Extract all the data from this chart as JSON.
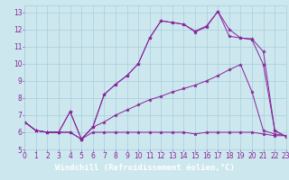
{
  "xlabel": "Windchill (Refroidissement éolien,°C)",
  "bg_color": "#cce8ee",
  "plot_bg_color": "#cce8ee",
  "line_color": "#882299",
  "grid_color": "#aaccdd",
  "xlabel_bg_color": "#442266",
  "xlabel_text_color": "#ffffff",
  "tick_color": "#882299",
  "xlim": [
    0,
    23
  ],
  "ylim": [
    5,
    13.4
  ],
  "xticks": [
    0,
    1,
    2,
    3,
    4,
    5,
    6,
    7,
    8,
    9,
    10,
    11,
    12,
    13,
    14,
    15,
    16,
    17,
    18,
    19,
    20,
    21,
    22,
    23
  ],
  "yticks": [
    5,
    6,
    7,
    8,
    9,
    10,
    11,
    12,
    13
  ],
  "line1_x": [
    0,
    1,
    2,
    3,
    4,
    5,
    6,
    7,
    8,
    9,
    10,
    11,
    12,
    13,
    14,
    15,
    16,
    17,
    18,
    19,
    20,
    21,
    22,
    23
  ],
  "line1_y": [
    6.6,
    6.1,
    6.0,
    6.0,
    6.0,
    5.6,
    6.0,
    6.0,
    6.0,
    6.0,
    6.0,
    6.0,
    6.0,
    6.0,
    6.0,
    5.9,
    6.0,
    6.0,
    6.0,
    6.0,
    6.0,
    5.9,
    5.8,
    5.8
  ],
  "line2_x": [
    0,
    1,
    2,
    3,
    4,
    5,
    6,
    7,
    8,
    9,
    10,
    11,
    12,
    13,
    14,
    15,
    16,
    17,
    18,
    19,
    20,
    21,
    22,
    23
  ],
  "line2_y": [
    6.6,
    6.1,
    6.0,
    6.0,
    6.0,
    5.6,
    6.3,
    6.6,
    7.0,
    7.3,
    7.6,
    7.9,
    8.1,
    8.35,
    8.55,
    8.75,
    9.0,
    9.3,
    9.65,
    9.95,
    8.35,
    6.1,
    5.9,
    5.8
  ],
  "line3_x": [
    0,
    1,
    2,
    3,
    4,
    5,
    6,
    7,
    8,
    9,
    10,
    11,
    12,
    13,
    14,
    15,
    16,
    17,
    18,
    19,
    20,
    21,
    22,
    23
  ],
  "line3_y": [
    6.6,
    6.1,
    6.0,
    6.0,
    7.2,
    5.6,
    6.3,
    8.2,
    8.8,
    9.3,
    10.0,
    11.5,
    12.5,
    12.4,
    12.3,
    11.85,
    12.15,
    13.05,
    12.0,
    11.5,
    11.45,
    10.7,
    6.1,
    5.75
  ],
  "line4_x": [
    0,
    1,
    2,
    3,
    4,
    5,
    6,
    7,
    8,
    9,
    10,
    11,
    12,
    13,
    14,
    15,
    16,
    17,
    18,
    19,
    20,
    21,
    22,
    23
  ],
  "line4_y": [
    6.6,
    6.1,
    6.0,
    6.0,
    7.2,
    5.6,
    6.3,
    8.2,
    8.8,
    9.3,
    10.0,
    11.5,
    12.5,
    12.4,
    12.3,
    11.9,
    12.2,
    13.05,
    11.6,
    11.5,
    11.4,
    9.95,
    6.1,
    5.75
  ],
  "tick_fontsize": 5.5,
  "xlabel_fontsize": 6.5
}
